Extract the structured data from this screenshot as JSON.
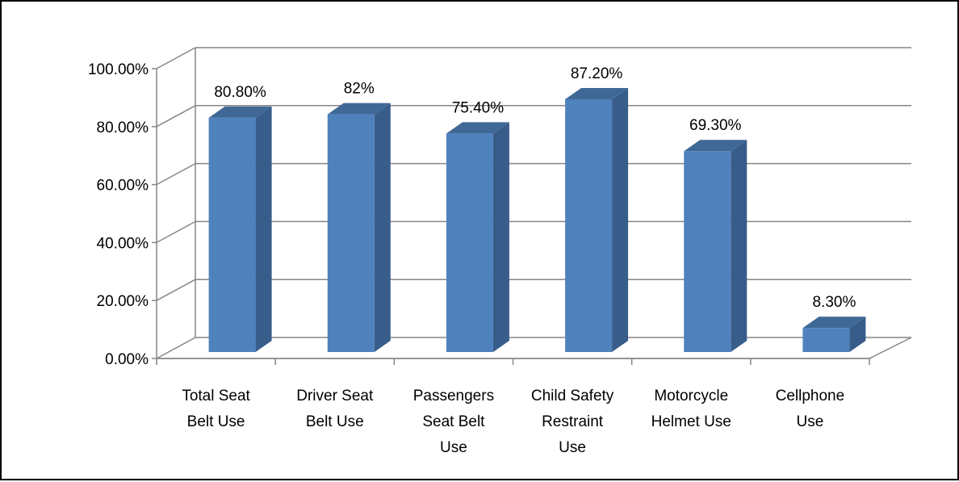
{
  "chart_data": {
    "type": "bar",
    "style": "3d-column",
    "title": "",
    "xlabel": "",
    "ylabel": "",
    "categories": [
      [
        "Total Seat",
        "Belt Use"
      ],
      [
        "Driver Seat",
        "Belt Use"
      ],
      [
        "Passengers",
        "Seat Belt",
        "Use"
      ],
      [
        "Child Safety",
        "Restraint",
        "Use"
      ],
      [
        "Motorcycle",
        "Helmet Use"
      ],
      [
        "Cellphone",
        "Use"
      ]
    ],
    "values": [
      80.8,
      82,
      75.4,
      87.2,
      69.3,
      8.3
    ],
    "data_labels": [
      "80.80%",
      "82%",
      "75.40%",
      "87.20%",
      "69.30%",
      "8.30%"
    ],
    "ylim": [
      0,
      100
    ],
    "yticks": [
      0,
      20,
      40,
      60,
      80,
      100
    ],
    "ytick_labels": [
      "0.00%",
      "20.00%",
      "40.00%",
      "60.00%",
      "80.00%",
      "100.00%"
    ],
    "grid": true,
    "legend": "none",
    "colors": {
      "bar_front": "#4F81BD",
      "bar_side": "#385D8A",
      "bar_top": "#3F6896",
      "grid": "#868686",
      "frame_border": "#000000"
    }
  }
}
